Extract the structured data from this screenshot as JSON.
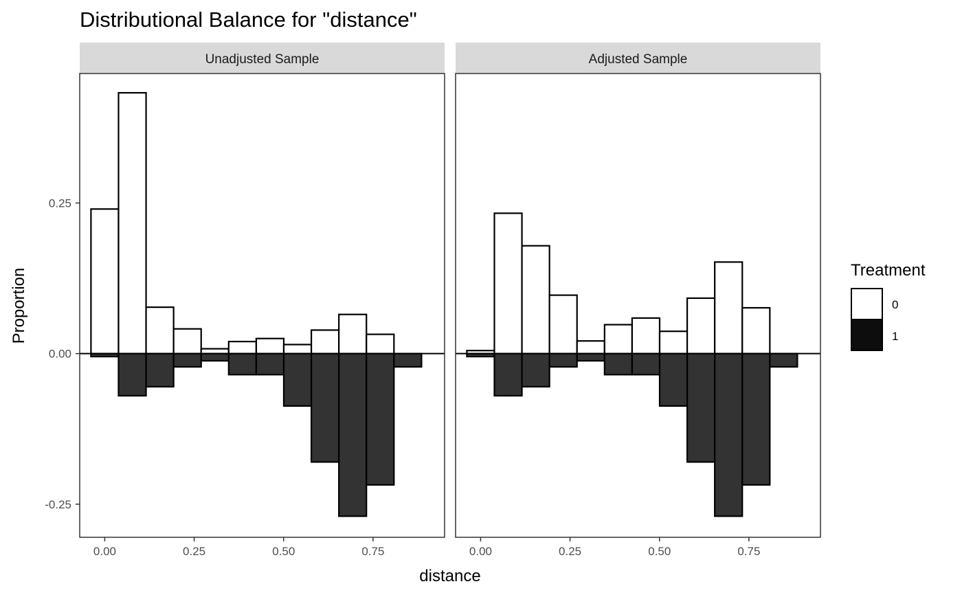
{
  "chart_data": {
    "type": "bar",
    "title": "Distributional Balance for \"distance\"",
    "xlabel": "distance",
    "ylabel": "Proportion",
    "xlim": [
      -0.07,
      0.95
    ],
    "ylim": [
      -0.305,
      0.465
    ],
    "x_ticks": [
      0.0,
      0.25,
      0.5,
      0.75
    ],
    "x_tick_labels": [
      "0.00",
      "0.25",
      "0.50",
      "0.75"
    ],
    "y_ticks": [
      -0.25,
      0.0,
      0.25
    ],
    "y_tick_labels": [
      "-0.25",
      "0.00",
      "0.25"
    ],
    "bin_width": 0.077,
    "bin_centers": [
      0.0,
      0.077,
      0.154,
      0.231,
      0.308,
      0.385,
      0.462,
      0.539,
      0.616,
      0.693,
      0.77,
      0.847
    ],
    "legend": {
      "title": "Treatment",
      "position": "right",
      "entries": [
        {
          "label": "0",
          "color": "#ffffff"
        },
        {
          "label": "1",
          "color": "#0d0d0d"
        }
      ]
    },
    "colors": {
      "treatment_0": "#ffffff",
      "treatment_1": "#333333",
      "outline": "#000000",
      "strip_background": "#d9d9d9"
    },
    "facets": [
      {
        "strip_label": "Unadjusted Sample",
        "series": [
          {
            "name": "0",
            "values": [
              0.24,
              0.433,
              0.077,
              0.041,
              0.008,
              0.02,
              0.025,
              0.015,
              0.039,
              0.065,
              0.032,
              0.0
            ]
          },
          {
            "name": "1",
            "values": [
              -0.005,
              -0.07,
              -0.055,
              -0.022,
              -0.012,
              -0.035,
              -0.035,
              -0.087,
              -0.18,
              -0.27,
              -0.218,
              -0.022
            ]
          }
        ]
      },
      {
        "strip_label": "Adjusted Sample",
        "series": [
          {
            "name": "0",
            "values": [
              0.005,
              0.233,
              0.179,
              0.097,
              0.021,
              0.048,
              0.059,
              0.037,
              0.092,
              0.152,
              0.076,
              0.0
            ]
          },
          {
            "name": "1",
            "values": [
              -0.005,
              -0.07,
              -0.055,
              -0.022,
              -0.012,
              -0.035,
              -0.035,
              -0.087,
              -0.18,
              -0.27,
              -0.218,
              -0.022
            ]
          }
        ]
      }
    ]
  }
}
